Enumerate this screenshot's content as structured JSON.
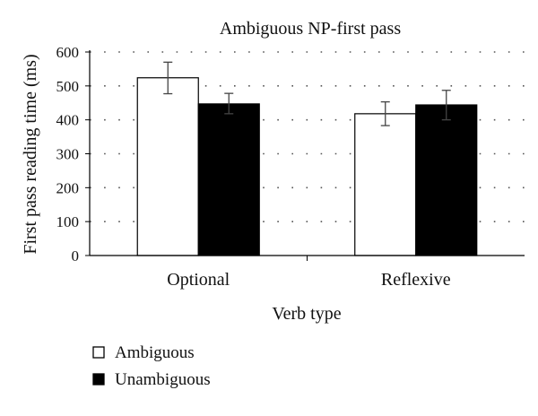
{
  "chart_data": {
    "type": "bar",
    "title": "Ambiguous NP-first pass",
    "xlabel": "Verb type",
    "ylabel": "First pass reading time (ms)",
    "categories": [
      "Optional",
      "Reflexive"
    ],
    "ylim": [
      0,
      600
    ],
    "yticks": [
      "0",
      "100",
      "200",
      "300",
      "400",
      "500",
      "600"
    ],
    "grid": true,
    "legend_position": "bottom-left",
    "series": [
      {
        "name": "Ambiguous",
        "fill": "#ffffff",
        "values": [
          524,
          418
        ],
        "error_low": [
          477,
          383
        ],
        "error_high": [
          570,
          453
        ]
      },
      {
        "name": "Unambiguous",
        "fill": "#000000",
        "values": [
          447,
          444
        ],
        "error_low": [
          418,
          400
        ],
        "error_high": [
          478,
          487
        ]
      }
    ]
  }
}
